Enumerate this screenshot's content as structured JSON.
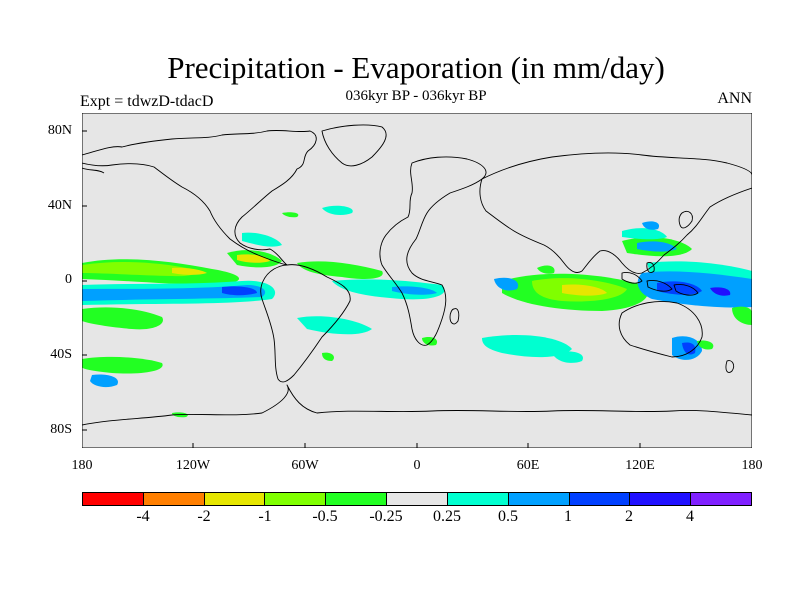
{
  "title": "Precipitation - Evaporation (in mm/day)",
  "subtitle": "036kyr BP - 036kyr BP",
  "left_label": "Expt = tdwzD-tdacD",
  "right_label": "ANN",
  "lat_labels": [
    "80N",
    "40N",
    "0",
    "40S",
    "80S"
  ],
  "lon_labels": [
    "180",
    "120W",
    "60W",
    "0",
    "60E",
    "120E",
    "180"
  ],
  "colorbar": {
    "colors": [
      "#ff0000",
      "#ff7f00",
      "#e6e600",
      "#80ff00",
      "#22ff22",
      "#e6e6e6",
      "#00ffd0",
      "#00a0ff",
      "#0040ff",
      "#2010ff",
      "#8020ff"
    ],
    "labels": [
      "-4",
      "-2",
      "-1",
      "-0.5",
      "-0.25",
      "0.25",
      "0.5",
      "1",
      "2",
      "4"
    ]
  }
}
